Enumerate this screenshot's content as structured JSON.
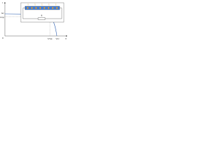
{
  "axes": {
    "y_label": "I",
    "x_label": "V",
    "origin": "0",
    "isc": "Isc",
    "imp": "Imp",
    "vmp": "Vmp",
    "voc": "Voc"
  },
  "inset": {
    "load": "R"
  }
}
